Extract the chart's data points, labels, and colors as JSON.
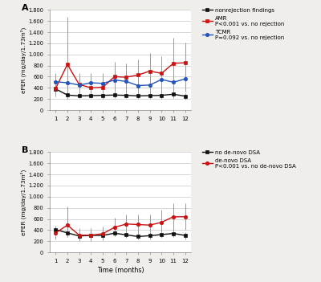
{
  "months": [
    1,
    2,
    3,
    4,
    5,
    6,
    7,
    8,
    9,
    10,
    11,
    12
  ],
  "panel_A": {
    "nonrejection_y": [
      380,
      270,
      255,
      260,
      265,
      270,
      265,
      255,
      260,
      265,
      285,
      250
    ],
    "nonrejection_lo": [
      290,
      200,
      210,
      210,
      200,
      210,
      210,
      200,
      200,
      200,
      210,
      190
    ],
    "nonrejection_hi": [
      480,
      340,
      310,
      320,
      330,
      340,
      330,
      310,
      320,
      340,
      370,
      310
    ],
    "AMR_y": [
      390,
      820,
      460,
      400,
      410,
      600,
      590,
      630,
      700,
      660,
      840,
      850
    ],
    "AMR_lo": [
      240,
      200,
      270,
      240,
      230,
      360,
      350,
      360,
      380,
      360,
      500,
      490
    ],
    "AMR_hi": [
      540,
      1680,
      660,
      600,
      600,
      860,
      840,
      910,
      1020,
      970,
      1300,
      1210
    ],
    "TCMR_y": [
      510,
      490,
      450,
      490,
      480,
      540,
      515,
      440,
      450,
      550,
      500,
      560
    ],
    "TCMR_lo": [
      350,
      320,
      290,
      310,
      290,
      340,
      310,
      280,
      270,
      330,
      290,
      330
    ],
    "TCMR_hi": [
      660,
      650,
      610,
      670,
      670,
      740,
      720,
      610,
      640,
      780,
      720,
      800
    ],
    "legend_labels": [
      "nonrejection findings",
      "AMR\nP<0.001 vs. no rejection",
      "TCMR\nP=0.092 vs. no rejection"
    ],
    "panel_label": "A"
  },
  "panel_B": {
    "no_dsa_y": [
      410,
      350,
      295,
      305,
      305,
      345,
      315,
      285,
      300,
      320,
      340,
      305
    ],
    "no_dsa_lo": [
      340,
      285,
      245,
      255,
      250,
      285,
      260,
      235,
      240,
      260,
      270,
      240
    ],
    "no_dsa_hi": [
      480,
      415,
      350,
      360,
      360,
      405,
      375,
      335,
      360,
      385,
      415,
      370
    ],
    "dsa_y": [
      350,
      490,
      310,
      310,
      335,
      450,
      510,
      500,
      490,
      540,
      640,
      640
    ],
    "dsa_lo": [
      240,
      280,
      200,
      210,
      220,
      290,
      330,
      320,
      300,
      320,
      400,
      400
    ],
    "dsa_hi": [
      460,
      820,
      430,
      430,
      460,
      620,
      680,
      680,
      680,
      760,
      880,
      880
    ],
    "legend_labels": [
      "no de-novo DSA",
      "de-novo DSA\nP<0.001 vs. no de-novo DSA"
    ],
    "panel_label": "B"
  },
  "ylabel": "ePER (mg/day/1.73m²)",
  "xlabel": "Time (months)",
  "ylim": [
    0,
    1800
  ],
  "yticks": [
    0,
    200,
    400,
    600,
    800,
    1000,
    1200,
    1400,
    1600,
    1800
  ],
  "yticklabels": [
    "0",
    "200",
    "400",
    "600",
    "800",
    "1.000",
    "1.200",
    "1.400",
    "1.600",
    "1.800"
  ],
  "bg_color": "#f0eeea",
  "plot_bg": "#ffffff",
  "grid_color": "#c8c8c8",
  "errorbar_color": "#999999",
  "line_color_black": "#111111",
  "line_color_red": "#cc1111",
  "line_color_blue": "#2255bb"
}
